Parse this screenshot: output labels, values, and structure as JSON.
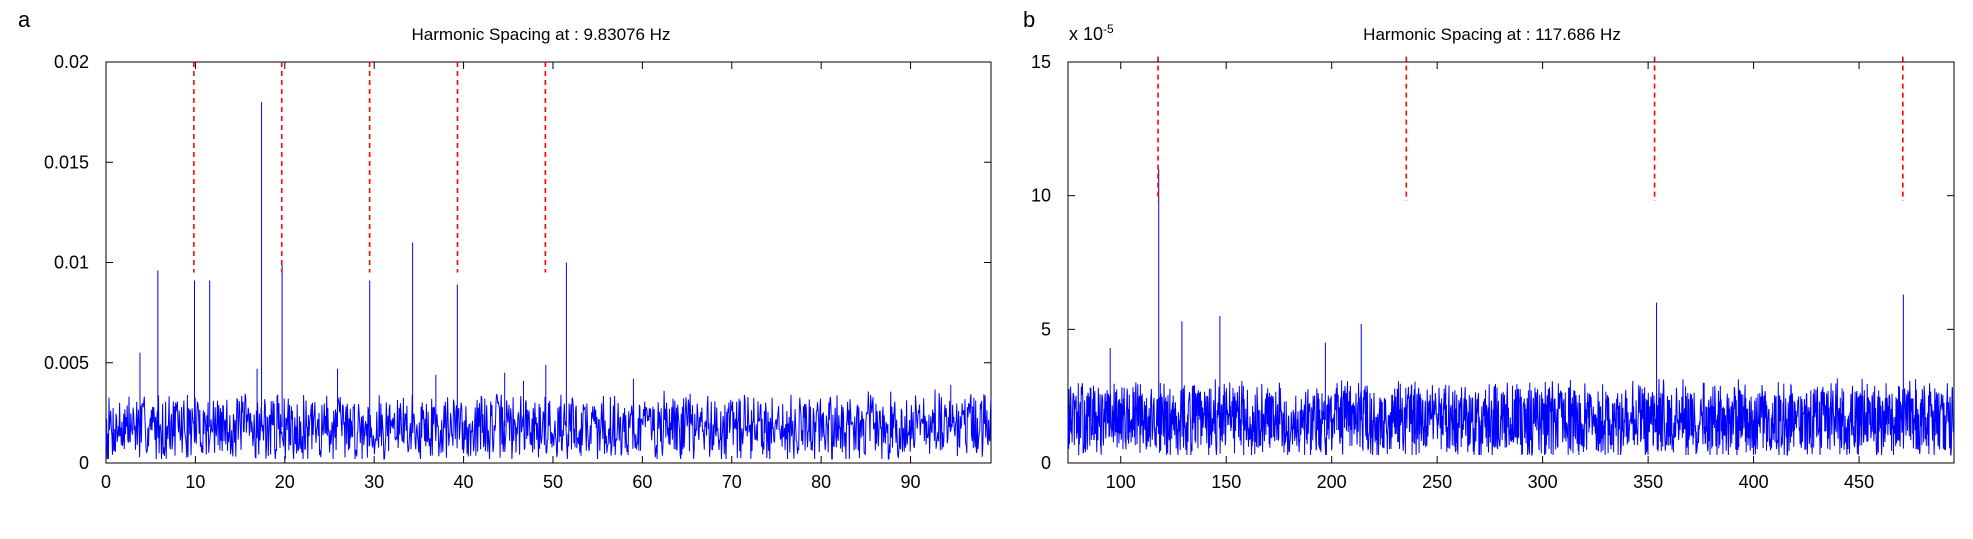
{
  "figure": {
    "panels": [
      {
        "panel_label": "a",
        "title": "Harmonic Spacing at : 9.83076 Hz",
        "exponent_label": "",
        "x_ticks": [
          "0",
          "10",
          "20",
          "30",
          "40",
          "50",
          "60",
          "70",
          "80",
          "90"
        ],
        "y_ticks": [
          "0",
          "0.005",
          "0.01",
          "0.015",
          "0.02"
        ]
      },
      {
        "panel_label": "b",
        "title": "Harmonic Spacing at : 117.686 Hz",
        "exponent_label": "x 10",
        "exponent_sup": "-5",
        "x_ticks": [
          "100",
          "150",
          "200",
          "250",
          "300",
          "350",
          "400",
          "450"
        ],
        "y_ticks": [
          "0",
          "5",
          "10",
          "15"
        ]
      }
    ]
  },
  "colors": {
    "signal": "#0000ff",
    "harmonic_marker": "#ff0000",
    "axes": "#000000"
  },
  "chart_data": [
    {
      "type": "line",
      "title": "Harmonic Spacing at : 9.83076 Hz",
      "xlabel": "",
      "ylabel": "",
      "xlim": [
        0,
        99
      ],
      "ylim": [
        0,
        0.02
      ],
      "x_ticks": [
        0,
        10,
        20,
        30,
        40,
        50,
        60,
        70,
        80,
        90
      ],
      "y_ticks": [
        0,
        0.005,
        0.01,
        0.015,
        0.02
      ],
      "noise_floor": {
        "min": 0.0002,
        "max": 0.004,
        "typical": 0.0018
      },
      "peaks": [
        {
          "x": 3.8,
          "y": 0.0055
        },
        {
          "x": 5.8,
          "y": 0.0096
        },
        {
          "x": 9.9,
          "y": 0.0091
        },
        {
          "x": 11.6,
          "y": 0.0091
        },
        {
          "x": 16.9,
          "y": 0.0047
        },
        {
          "x": 17.4,
          "y": 0.018
        },
        {
          "x": 19.7,
          "y": 0.0099
        },
        {
          "x": 25.9,
          "y": 0.0047
        },
        {
          "x": 29.5,
          "y": 0.0091
        },
        {
          "x": 34.3,
          "y": 0.011
        },
        {
          "x": 36.9,
          "y": 0.0044
        },
        {
          "x": 39.3,
          "y": 0.0089
        },
        {
          "x": 44.6,
          "y": 0.0045
        },
        {
          "x": 46.7,
          "y": 0.0041
        },
        {
          "x": 49.2,
          "y": 0.0049
        },
        {
          "x": 51.5,
          "y": 0.01
        },
        {
          "x": 59.0,
          "y": 0.0042
        },
        {
          "x": 94.5,
          "y": 0.0039
        }
      ],
      "harmonic_markers": {
        "x": [
          9.83,
          19.66,
          29.49,
          39.32,
          49.15
        ],
        "y_range": [
          0.0095,
          0.02
        ]
      },
      "grid": false,
      "legend": "none"
    },
    {
      "type": "line",
      "title": "Harmonic Spacing at : 117.686 Hz",
      "xlabel": "",
      "ylabel": "",
      "y_scale_factor": "x 10^-5",
      "xlim": [
        75,
        495
      ],
      "ylim": [
        0,
        15
      ],
      "x_ticks": [
        100,
        150,
        200,
        250,
        300,
        350,
        400,
        450
      ],
      "y_ticks": [
        0,
        5,
        10,
        15
      ],
      "noise_floor": {
        "min": 0.3,
        "max": 3.5,
        "typical": 1.6
      },
      "peaks": [
        {
          "x": 95,
          "y": 4.3
        },
        {
          "x": 118,
          "y": 11.0
        },
        {
          "x": 129,
          "y": 5.3
        },
        {
          "x": 147,
          "y": 5.5
        },
        {
          "x": 197,
          "y": 4.5
        },
        {
          "x": 214,
          "y": 5.2
        },
        {
          "x": 354,
          "y": 6.0
        },
        {
          "x": 471,
          "y": 6.3
        }
      ],
      "harmonic_markers": {
        "x": [
          117.686,
          235.372,
          353.058,
          470.744
        ],
        "y_range": [
          9.8,
          15.2
        ]
      },
      "grid": false,
      "legend": "none"
    }
  ]
}
